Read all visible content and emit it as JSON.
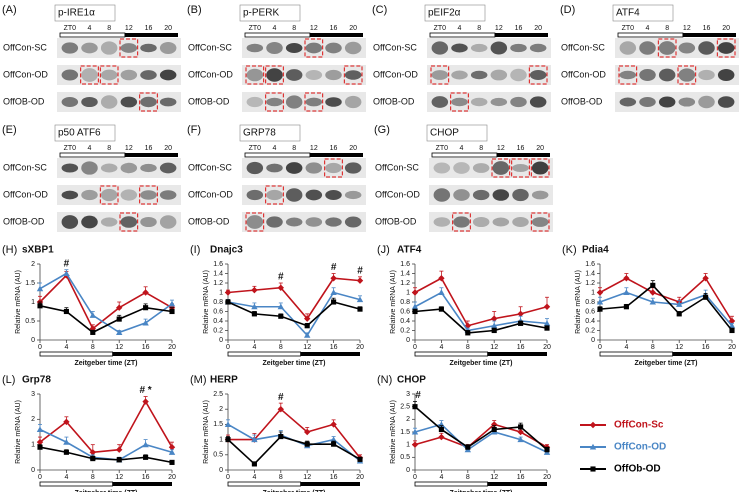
{
  "blots": [
    {
      "panel": "(A)",
      "title": "p-IRE1α",
      "zt": [
        "ZT0",
        "4",
        "8",
        "12",
        "16",
        "20"
      ],
      "rows": [
        "OffCon-SC",
        "OffCon-OD",
        "OffOB-OD"
      ]
    },
    {
      "panel": "(B)",
      "title": "p-PERK",
      "zt": [
        "ZT0",
        "4",
        "8",
        "12",
        "16",
        "20"
      ],
      "rows": [
        "OffCon-SC",
        "OffCon-OD",
        "OffOB-OD"
      ]
    },
    {
      "panel": "(C)",
      "title": "pEIF2α",
      "zt": [
        "ZT0",
        "4",
        "8",
        "12",
        "16",
        "20"
      ],
      "rows": [
        "OffCon-SC",
        "OffCon-OD",
        "OffOB-OD"
      ]
    },
    {
      "panel": "(D)",
      "title": "ATF4",
      "zt": [
        "ZT0",
        "4",
        "8",
        "12",
        "16",
        "20"
      ],
      "rows": [
        "OffCon-SC",
        "OffCon-OD",
        "OffOB-OD"
      ]
    },
    {
      "panel": "(E)",
      "title": "p50 ATF6",
      "zt": [
        "ZT0",
        "4",
        "8",
        "12",
        "16",
        "20"
      ],
      "rows": [
        "OffCon-SC",
        "OffCon-OD",
        "OffOB-OD"
      ]
    },
    {
      "panel": "(F)",
      "title": "GRP78",
      "zt": [
        "ZT0",
        "4",
        "8",
        "12",
        "16",
        "20"
      ],
      "rows": [
        "OffCon-SC",
        "OffCon-OD",
        "OffOB-OD"
      ]
    },
    {
      "panel": "(G)",
      "title": "CHOP",
      "zt": [
        "ZT0",
        "4",
        "8",
        "12",
        "16",
        "20"
      ],
      "rows": [
        "OffCon-SC",
        "OffCon-OD",
        "OffOB-OD"
      ]
    }
  ],
  "chart_data": [
    {
      "type": "line",
      "panel": "(H)",
      "title": "sXBP1",
      "ylabel": "Relative mRNA (AU)",
      "xlabel": "Zeitgeber time (ZT)",
      "x": [
        0,
        4,
        8,
        12,
        16,
        20
      ],
      "xlim": [
        0,
        20
      ],
      "xticks": [
        0,
        4,
        8,
        12,
        16,
        20
      ],
      "ylim": [
        0,
        2
      ],
      "yticks": [
        0,
        0.5,
        1,
        1.5,
        2
      ],
      "series": [
        {
          "name": "OffCon-Sc",
          "color": "#c0141c",
          "marker": "diamond",
          "values": [
            1.0,
            1.7,
            0.3,
            0.85,
            1.25,
            0.85
          ],
          "errors": [
            0.15,
            0.1,
            0.1,
            0.15,
            0.15,
            0.1
          ]
        },
        {
          "name": "OffCon-OD",
          "color": "#4a86c5",
          "marker": "triangle",
          "values": [
            1.35,
            1.75,
            0.65,
            0.2,
            0.45,
            0.95
          ],
          "errors": [
            0.15,
            0.1,
            0.1,
            0.05,
            0.1,
            0.1
          ]
        },
        {
          "name": "OffOb-OD",
          "color": "#000000",
          "marker": "square",
          "values": [
            0.9,
            0.75,
            0.2,
            0.55,
            0.85,
            0.75
          ],
          "errors": [
            0.1,
            0.1,
            0.05,
            0.1,
            0.1,
            0.1
          ]
        }
      ],
      "annotations": [
        {
          "text": "#",
          "x": 4
        }
      ]
    },
    {
      "type": "line",
      "panel": "(I)",
      "title": "Dnajc3",
      "ylabel": "Relative mRNA (AU)",
      "xlabel": "Zeitgeber time (ZT)",
      "x": [
        0,
        4,
        8,
        12,
        16,
        20
      ],
      "xlim": [
        0,
        20
      ],
      "xticks": [
        0,
        4,
        8,
        12,
        16,
        20
      ],
      "ylim": [
        0,
        1.6
      ],
      "yticks": [
        0,
        0.2,
        0.4,
        0.6,
        0.8,
        1,
        1.2,
        1.4,
        1.6
      ],
      "series": [
        {
          "name": "OffCon-Sc",
          "color": "#c0141c",
          "marker": "diamond",
          "values": [
            1.0,
            1.05,
            1.1,
            0.45,
            1.3,
            1.25
          ],
          "errors": [
            0.05,
            0.08,
            0.1,
            0.1,
            0.1,
            0.08
          ]
        },
        {
          "name": "OffCon-OD",
          "color": "#4a86c5",
          "marker": "triangle",
          "values": [
            0.8,
            0.7,
            0.7,
            0.1,
            1.0,
            0.85
          ],
          "errors": [
            0.05,
            0.08,
            0.08,
            0.05,
            0.1,
            0.08
          ]
        },
        {
          "name": "OffOb-OD",
          "color": "#000000",
          "marker": "square",
          "values": [
            0.8,
            0.55,
            0.5,
            0.3,
            0.8,
            0.65
          ],
          "errors": [
            0.05,
            0.05,
            0.05,
            0.05,
            0.08,
            0.05
          ]
        }
      ],
      "annotations": [
        {
          "text": "#",
          "x": 8
        },
        {
          "text": "#",
          "x": 16
        },
        {
          "text": "#",
          "x": 20
        }
      ]
    },
    {
      "type": "line",
      "panel": "(J)",
      "title": "ATF4",
      "ylabel": "Relative mRNA (AU)",
      "xlabel": "Zeitgeber time (ZT)",
      "x": [
        0,
        4,
        8,
        12,
        16,
        20
      ],
      "xlim": [
        0,
        20
      ],
      "xticks": [
        0,
        4,
        8,
        12,
        16,
        20
      ],
      "ylim": [
        0,
        1.6
      ],
      "yticks": [
        0,
        0.2,
        0.4,
        0.6,
        0.8,
        1,
        1.2,
        1.4,
        1.6
      ],
      "series": [
        {
          "name": "OffCon-Sc",
          "color": "#c0141c",
          "marker": "diamond",
          "values": [
            1.0,
            1.3,
            0.3,
            0.45,
            0.55,
            0.7
          ],
          "errors": [
            0.1,
            0.15,
            0.1,
            0.15,
            0.15,
            0.2
          ]
        },
        {
          "name": "OffCon-OD",
          "color": "#4a86c5",
          "marker": "triangle",
          "values": [
            0.7,
            1.0,
            0.2,
            0.3,
            0.4,
            0.35
          ],
          "errors": [
            0.1,
            0.1,
            0.05,
            0.1,
            0.1,
            0.1
          ]
        },
        {
          "name": "OffOb-OD",
          "color": "#000000",
          "marker": "square",
          "values": [
            0.6,
            0.65,
            0.15,
            0.2,
            0.35,
            0.25
          ],
          "errors": [
            0.05,
            0.05,
            0.05,
            0.05,
            0.05,
            0.05
          ]
        }
      ],
      "annotations": []
    },
    {
      "type": "line",
      "panel": "(K)",
      "title": "Pdia4",
      "ylabel": "Relative mRNA (AU)",
      "xlabel": "Zeitgeber time (ZT)",
      "x": [
        0,
        4,
        8,
        12,
        16,
        20
      ],
      "xlim": [
        0,
        20
      ],
      "xticks": [
        0,
        4,
        8,
        12,
        16,
        20
      ],
      "ylim": [
        0,
        1.6
      ],
      "yticks": [
        0,
        0.2,
        0.4,
        0.6,
        0.8,
        1,
        1.2,
        1.4,
        1.6
      ],
      "series": [
        {
          "name": "OffCon-Sc",
          "color": "#c0141c",
          "marker": "diamond",
          "values": [
            1.0,
            1.3,
            1.0,
            0.8,
            1.3,
            0.4
          ],
          "errors": [
            0.1,
            0.1,
            0.1,
            0.1,
            0.1,
            0.1
          ]
        },
        {
          "name": "OffCon-OD",
          "color": "#4a86c5",
          "marker": "triangle",
          "values": [
            0.8,
            1.0,
            0.8,
            0.75,
            0.95,
            0.3
          ],
          "errors": [
            0.1,
            0.1,
            0.08,
            0.08,
            0.1,
            0.05
          ]
        },
        {
          "name": "OffOb-OD",
          "color": "#000000",
          "marker": "square",
          "values": [
            0.65,
            0.7,
            1.15,
            0.55,
            0.9,
            0.2
          ],
          "errors": [
            0.05,
            0.05,
            0.1,
            0.05,
            0.08,
            0.05
          ]
        }
      ],
      "annotations": []
    },
    {
      "type": "line",
      "panel": "(L)",
      "title": "Grp78",
      "ylabel": "Relative mRNA (AU)",
      "xlabel": "Zeitgeber time (ZT)",
      "x": [
        0,
        4,
        8,
        12,
        16,
        20
      ],
      "xlim": [
        0,
        20
      ],
      "xticks": [
        0,
        4,
        8,
        12,
        16,
        20
      ],
      "ylim": [
        0,
        3
      ],
      "yticks": [
        0,
        1,
        2,
        3
      ],
      "series": [
        {
          "name": "OffCon-Sc",
          "color": "#c0141c",
          "marker": "diamond",
          "values": [
            1.1,
            1.9,
            0.7,
            0.8,
            2.7,
            0.9
          ],
          "errors": [
            0.2,
            0.2,
            0.3,
            0.2,
            0.2,
            0.2
          ]
        },
        {
          "name": "OffCon-OD",
          "color": "#4a86c5",
          "marker": "triangle",
          "values": [
            1.6,
            1.1,
            0.5,
            0.4,
            1.0,
            0.7
          ],
          "errors": [
            0.2,
            0.2,
            0.1,
            0.1,
            0.2,
            0.1
          ]
        },
        {
          "name": "OffOb-OD",
          "color": "#000000",
          "marker": "square",
          "values": [
            0.9,
            0.7,
            0.45,
            0.4,
            0.5,
            0.3
          ],
          "errors": [
            0.1,
            0.1,
            0.1,
            0.1,
            0.1,
            0.05
          ]
        }
      ],
      "annotations": [
        {
          "text": "# *",
          "x": 16
        }
      ]
    },
    {
      "type": "line",
      "panel": "(M)",
      "title": "HERP",
      "ylabel": "Relative mRNA (AU)",
      "xlabel": "Zeitgeber time (ZT)",
      "x": [
        0,
        4,
        8,
        12,
        16,
        20
      ],
      "xlim": [
        0,
        20
      ],
      "xticks": [
        0,
        4,
        8,
        12,
        16,
        20
      ],
      "ylim": [
        0,
        2.5
      ],
      "yticks": [
        0,
        0.5,
        1,
        1.5,
        2,
        2.5
      ],
      "series": [
        {
          "name": "OffCon-Sc",
          "color": "#c0141c",
          "marker": "diamond",
          "values": [
            1.0,
            1.0,
            2.0,
            1.25,
            1.5,
            0.4
          ],
          "errors": [
            0.15,
            0.2,
            0.2,
            0.15,
            0.15,
            0.1
          ]
        },
        {
          "name": "OffCon-OD",
          "color": "#4a86c5",
          "marker": "triangle",
          "values": [
            1.5,
            1.0,
            1.15,
            0.8,
            1.0,
            0.3
          ],
          "errors": [
            0.15,
            0.15,
            0.15,
            0.1,
            0.1,
            0.05
          ]
        },
        {
          "name": "OffOb-OD",
          "color": "#000000",
          "marker": "square",
          "values": [
            1.0,
            0.2,
            1.1,
            0.85,
            0.85,
            0.35
          ],
          "errors": [
            0.1,
            0.05,
            0.15,
            0.1,
            0.1,
            0.05
          ]
        }
      ],
      "annotations": [
        {
          "text": "#",
          "x": 8
        }
      ]
    },
    {
      "type": "line",
      "panel": "(N)",
      "title": "CHOP",
      "ylabel": "Relative mRNA (AU)",
      "xlabel": "Zeitgeber time (ZT)",
      "x": [
        0,
        4,
        8,
        12,
        16,
        20
      ],
      "xlim": [
        0,
        20
      ],
      "xticks": [
        0,
        4,
        8,
        12,
        16,
        20
      ],
      "ylim": [
        0,
        3
      ],
      "yticks": [
        0,
        0.5,
        1,
        1.5,
        2,
        2.5,
        3
      ],
      "series": [
        {
          "name": "OffCon-Sc",
          "color": "#c0141c",
          "marker": "diamond",
          "values": [
            1.0,
            1.3,
            0.9,
            1.8,
            1.5,
            0.9
          ],
          "errors": [
            0.15,
            0.15,
            0.1,
            0.15,
            0.15,
            0.1
          ]
        },
        {
          "name": "OffCon-OD",
          "color": "#4a86c5",
          "marker": "triangle",
          "values": [
            1.5,
            1.8,
            0.8,
            1.5,
            1.2,
            0.7
          ],
          "errors": [
            0.15,
            0.15,
            0.1,
            0.15,
            0.1,
            0.1
          ]
        },
        {
          "name": "OffOb-OD",
          "color": "#000000",
          "marker": "square",
          "values": [
            2.5,
            1.6,
            0.9,
            1.6,
            1.7,
            0.8
          ],
          "errors": [
            0.2,
            0.15,
            0.1,
            0.15,
            0.15,
            0.1
          ]
        }
      ],
      "annotations": [
        {
          "text": "#",
          "x": 0
        }
      ]
    }
  ]
}
